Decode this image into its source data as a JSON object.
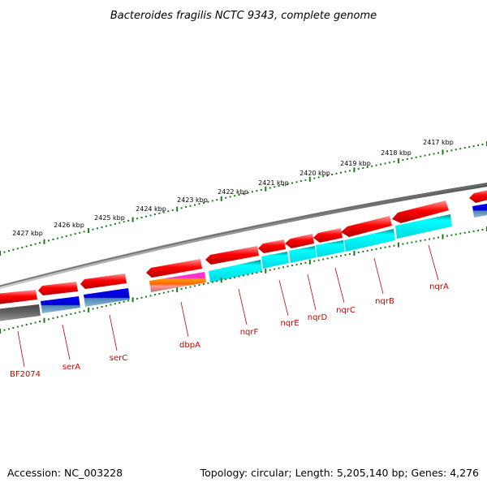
{
  "title": "Bacteroides fragilis NCTC 9343, complete genome",
  "footer": {
    "accession": "Accession: NC_003228",
    "summary": "Topology: circular; Length: 5,205,140 bp; Genes: 4,276"
  },
  "ruler": {
    "unit": "kbp",
    "ticks": [
      "2417 kbp",
      "2418 kbp",
      "2419 kbp",
      "2420 kbp",
      "2421 kbp",
      "2422 kbp",
      "2423 kbp",
      "2424 kbp",
      "2425 kbp",
      "2426 kbp",
      "2427 kbp"
    ]
  },
  "genes": [
    {
      "name": "nqrA",
      "top_color": "#ff0000",
      "bottom_color": "#00ffff"
    },
    {
      "name": "nqrB",
      "top_color": "#ff0000",
      "bottom_color": "#00ffff"
    },
    {
      "name": "nqrC",
      "top_color": "#ff0000",
      "bottom_color": "#00ffff"
    },
    {
      "name": "nqrD",
      "top_color": "#ff0000",
      "bottom_color": "#00ffff"
    },
    {
      "name": "nqrE",
      "top_color": "#ff0000",
      "bottom_color": "#00ffff"
    },
    {
      "name": "nqrF",
      "top_color": "#ff0000",
      "bottom_color": "#00ffff"
    },
    {
      "name": "dbpA",
      "top_color": "#ff0000",
      "bottom_color": "#ff66cc"
    },
    {
      "name": "serC",
      "top_color": "#ff0000",
      "bottom_color": "#0000ff"
    },
    {
      "name": "serA",
      "top_color": "#ff0000",
      "bottom_color": "#0000ff"
    },
    {
      "name": "BF2074",
      "top_color": "#ff0000",
      "bottom_color": "#666666"
    }
  ],
  "colors": {
    "backbone": "#7a7a7a",
    "tick": "#1a7a1a",
    "label": "#cc0000"
  }
}
